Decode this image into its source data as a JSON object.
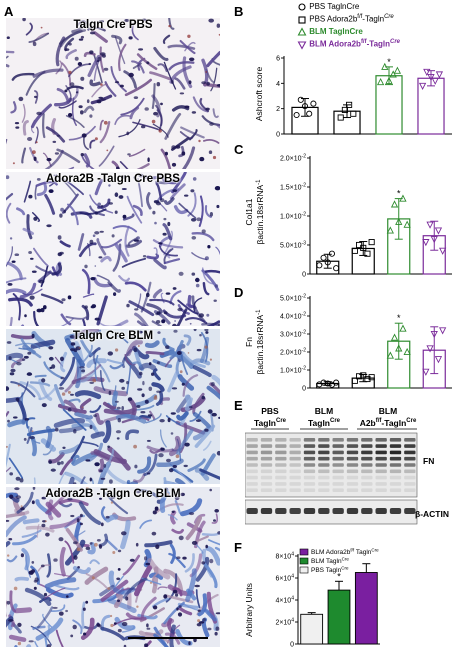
{
  "panels": {
    "a": {
      "letter": "A"
    },
    "b": {
      "letter": "B"
    },
    "c": {
      "letter": "C"
    },
    "d": {
      "letter": "D"
    },
    "e": {
      "letter": "E"
    },
    "f": {
      "letter": "F"
    }
  },
  "micrographs": [
    {
      "title": "Talgn  Cre PBS",
      "tone": "pbs"
    },
    {
      "title": "Adora2B -Talgn  Cre PBS",
      "tone": "pbs2"
    },
    {
      "title": "Talgn  Cre BLM",
      "tone": "blm"
    },
    {
      "title": "Adora2B -Talgn  Cre BLM",
      "tone": "blm2"
    }
  ],
  "legend_top": [
    {
      "symbol": "circle",
      "text": "PBS TaglnCre",
      "color": "#000000"
    },
    {
      "symbol": "square",
      "text": "PBS Adora2b",
      "sup": "f/f",
      "text2": "-Tagln",
      "sup2": "Cre",
      "color": "#000000"
    },
    {
      "symbol": "triangle",
      "text": "BLM TaglnCre",
      "color": "#2e8b2e"
    },
    {
      "symbol": "triangle-down",
      "text": "BLM Adora2b",
      "sup": "f/f",
      "text2": "-Tagln",
      "sup2": "Cre",
      "color": "#7a2a9a"
    }
  ],
  "group_colors": [
    "#000000",
    "#000000",
    "#2e8b2e",
    "#7a2a9a"
  ],
  "chart_data": [
    {
      "id": "B",
      "type": "bar",
      "ylabel": "Ashcroft score",
      "ylim": [
        0,
        6
      ],
      "yticks": [
        "0",
        "2",
        "4",
        "6"
      ],
      "yticks_values": [
        0,
        2,
        4,
        6
      ],
      "series": [
        {
          "values": [
            2.1,
            1.8,
            4.6,
            4.4
          ],
          "errors": [
            0.7,
            0.5,
            0.7,
            0.6
          ]
        }
      ],
      "points": [
        [
          1.5,
          2.7,
          2.2,
          1.6,
          2.4
        ],
        [
          1.3,
          1.9,
          2.3,
          1.6
        ],
        [
          4.1,
          5.3,
          4.2,
          4.7,
          5.0
        ],
        [
          3.8,
          4.9,
          4.5,
          4.2,
          4.7
        ]
      ],
      "star": 2
    },
    {
      "id": "C",
      "type": "bar",
      "ylabel": "Col1a1",
      "ylabel2": "βactin.18srRNA",
      "ylabel2_sup": "-1",
      "ylim": [
        0,
        0.02
      ],
      "yticks": [
        "0",
        "5.0×10",
        "1.0×10",
        "1.5×10",
        "2.0×10"
      ],
      "yticks_sup": [
        "",
        "-3",
        "-2",
        "-2",
        "-2"
      ],
      "yticks_values": [
        0,
        0.005,
        0.01,
        0.015,
        0.02
      ],
      "series": [
        {
          "values": [
            0.0022,
            0.0044,
            0.0095,
            0.0066
          ],
          "errors": [
            0.0012,
            0.0012,
            0.0035,
            0.0025
          ]
        }
      ],
      "points": [
        [
          0.0015,
          0.0028,
          0.002,
          0.0035,
          0.001
        ],
        [
          0.004,
          0.005,
          0.0045,
          0.0035,
          0.0055
        ],
        [
          0.0075,
          0.012,
          0.009,
          0.013,
          0.0085
        ],
        [
          0.0055,
          0.0085,
          0.006,
          0.0075,
          0.004
        ]
      ],
      "star": 2
    },
    {
      "id": "D",
      "type": "bar",
      "ylabel": "Fn",
      "ylabel2": "βactin.18srRNA",
      "ylabel2_sup": "-1",
      "ylim": [
        0,
        0.05
      ],
      "yticks": [
        "0",
        "1.0×10",
        "2.0×10",
        "3.0×10",
        "4.0×10",
        "5.0×10"
      ],
      "yticks_sup": [
        "",
        "-2",
        "-2",
        "-2",
        "-2",
        "-2"
      ],
      "yticks_values": [
        0,
        0.01,
        0.02,
        0.03,
        0.04,
        0.05
      ],
      "series": [
        {
          "values": [
            0.0025,
            0.0055,
            0.026,
            0.021
          ],
          "errors": [
            0.001,
            0.002,
            0.01,
            0.013
          ]
        }
      ],
      "points": [
        [
          0.002,
          0.003,
          0.0025,
          0.0018,
          0.003
        ],
        [
          0.004,
          0.0065,
          0.007,
          0.005,
          0.006
        ],
        [
          0.018,
          0.028,
          0.022,
          0.033,
          0.02
        ],
        [
          0.009,
          0.022,
          0.03,
          0.016,
          0.032
        ]
      ],
      "star": 2
    },
    {
      "id": "F",
      "type": "bar",
      "ylabel": "Arbitrary Units",
      "ylim": [
        0,
        80000.0
      ],
      "yticks": [
        "0",
        "2×10",
        "4×10",
        "6×10",
        "8×10"
      ],
      "yticks_sup": [
        "",
        "4",
        "4",
        "4",
        "4"
      ],
      "yticks_values": [
        0,
        20000,
        40000,
        60000,
        80000
      ],
      "categories": [
        "PBS TaglnCre",
        "BLM TaglnCre",
        "BLM Adora2bf/f TaglnCre"
      ],
      "series": [
        {
          "values": [
            27000,
            49000,
            65000
          ],
          "errors": [
            1500,
            8000,
            8000
          ]
        }
      ],
      "colors": [
        "#f0f0f0",
        "#1e8a2e",
        "#7a1fa0"
      ],
      "legend": [
        {
          "text": "BLM Adora2b",
          "sup": "f/f",
          "text2": " Tagln",
          "sup2": "Cre",
          "color": "#7a1fa0"
        },
        {
          "text": "BLM Tagln",
          "sup": "Cre",
          "text2": "",
          "sup2": "",
          "color": "#1e8a2e"
        },
        {
          "text": "PBS Tagln",
          "sup": "Cre",
          "text2": "",
          "sup2": "",
          "color": "#f0f0f0"
        }
      ],
      "star": 1
    }
  ],
  "western": {
    "groups": [
      {
        "line1": "PBS",
        "line2": "Tagln",
        "sup2": "Cre"
      },
      {
        "line1": "BLM",
        "line2": "Tagln",
        "sup2": "Cre"
      },
      {
        "line1": "BLM",
        "line2": "A2b",
        "sup2": "f/f",
        "line2b": "-Tagln",
        "sup2b": "Cre"
      }
    ],
    "bands": [
      "FN",
      "β-ACTIN"
    ],
    "intensities": [
      0.35,
      0.4,
      0.38,
      0.3,
      0.75,
      0.8,
      0.7,
      0.78,
      0.85,
      0.9,
      0.95,
      0.88
    ],
    "actin_intensities": [
      0.8,
      0.82,
      0.8,
      0.78,
      0.82,
      0.8,
      0.8,
      0.82,
      0.8,
      0.82,
      0.8,
      0.8
    ]
  }
}
